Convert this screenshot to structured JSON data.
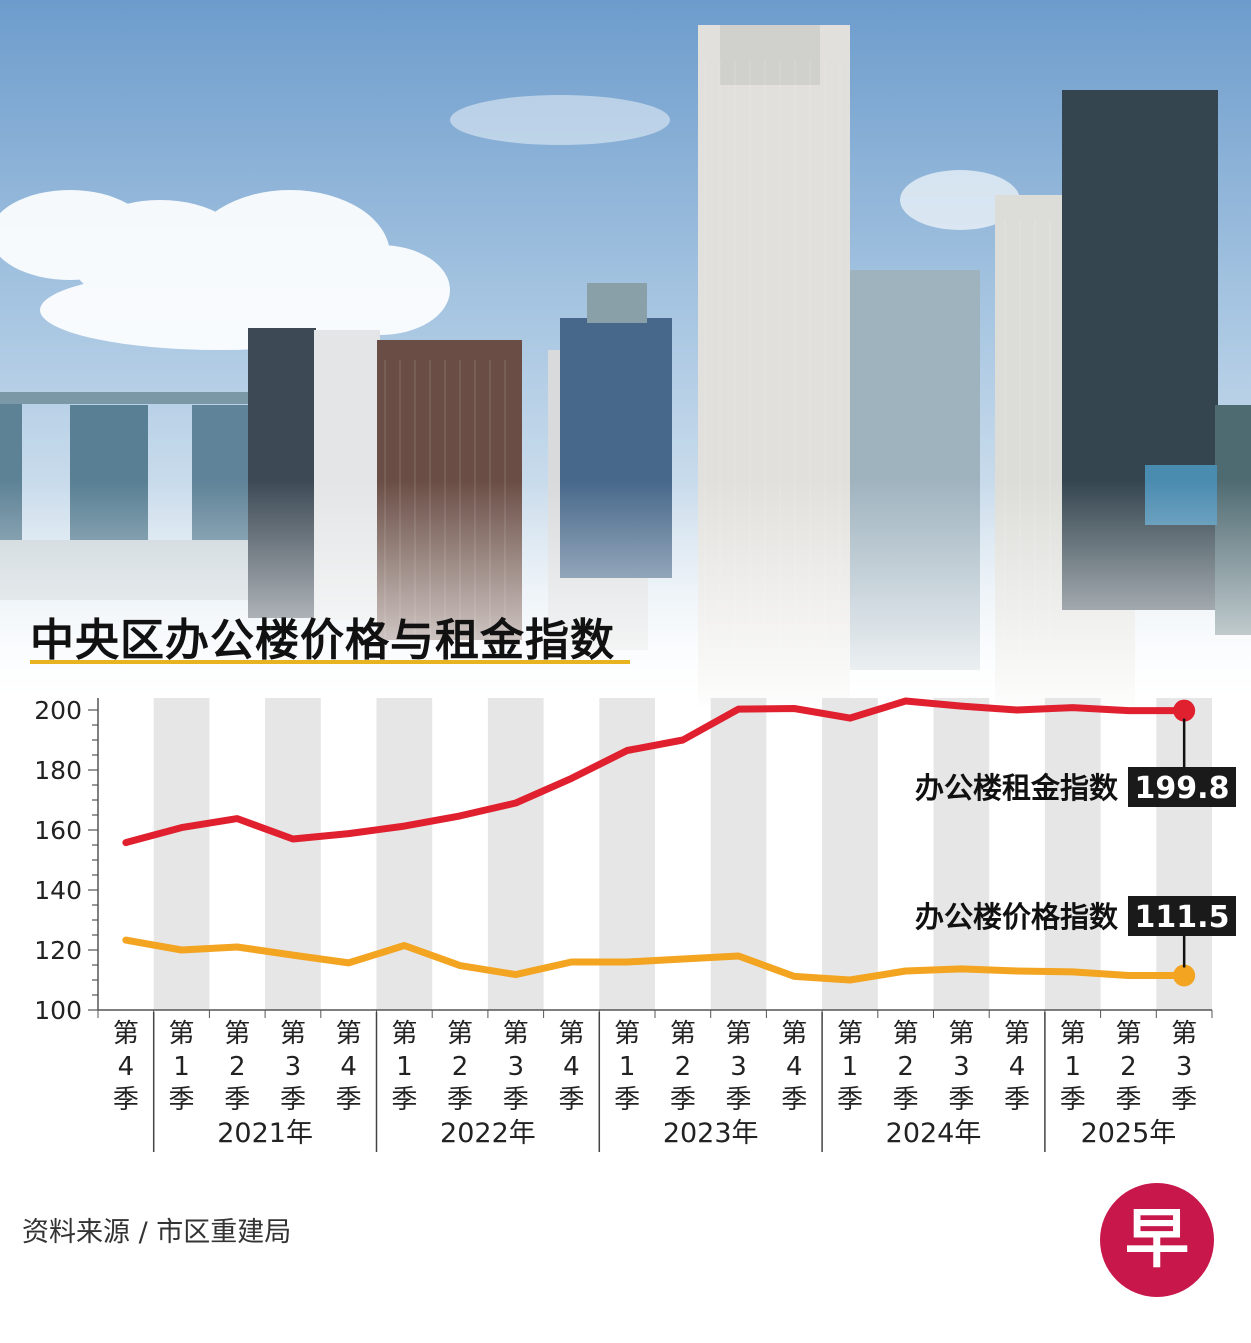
{
  "title": "中央区办公楼价格与租金指数",
  "source": "资料来源 / 市区重建局",
  "logo_text": "早",
  "colors": {
    "rent": "#e0202f",
    "price": "#f3a421",
    "band": "#e6e6e6",
    "label_bg": "#1a1a1a",
    "rule": "#e7b320",
    "logo": "#c8174a"
  },
  "chart_data": {
    "type": "line",
    "title": "中央区办公楼价格与租金指数",
    "ylim": [
      100,
      200
    ],
    "yticks": [
      100,
      120,
      140,
      160,
      180,
      200
    ],
    "x_labels": [
      "第\n4\n季",
      "第\n1\n季",
      "第\n2\n季",
      "第\n3\n季",
      "第\n4\n季",
      "第\n1\n季",
      "第\n2\n季",
      "第\n3\n季",
      "第\n4\n季",
      "第\n1\n季",
      "第\n2\n季",
      "第\n3\n季",
      "第\n4\n季",
      "第\n1\n季",
      "第\n2\n季",
      "第\n3\n季",
      "第\n4\n季",
      "第\n1\n季",
      "第\n2\n季",
      "第\n3\n季"
    ],
    "year_groups": [
      {
        "label": "2021年",
        "start": 1,
        "end": 4
      },
      {
        "label": "2022年",
        "start": 5,
        "end": 8
      },
      {
        "label": "2023年",
        "start": 9,
        "end": 12
      },
      {
        "label": "2024年",
        "start": 13,
        "end": 16
      },
      {
        "label": "2025年",
        "start": 17,
        "end": 19
      }
    ],
    "series": [
      {
        "name": "办公楼租金指数",
        "color": "#e0202f",
        "values": [
          155.8,
          160.8,
          163.8,
          157.0,
          158.8,
          161.3,
          164.7,
          169.0,
          177.2,
          186.5,
          190.0,
          200.3,
          200.5,
          197.3,
          203.0,
          201.3,
          200.0,
          200.8,
          199.8,
          199.8
        ],
        "end_label": "199.8"
      },
      {
        "name": "办公楼价格指数",
        "color": "#f3a421",
        "values": [
          123.3,
          120.0,
          121.0,
          118.3,
          115.7,
          121.5,
          114.8,
          111.8,
          116.0,
          116.0,
          117.0,
          118.0,
          111.2,
          110.0,
          113.0,
          113.7,
          113.0,
          112.7,
          111.5,
          111.5
        ],
        "end_label": "111.5"
      }
    ],
    "grid": false
  }
}
